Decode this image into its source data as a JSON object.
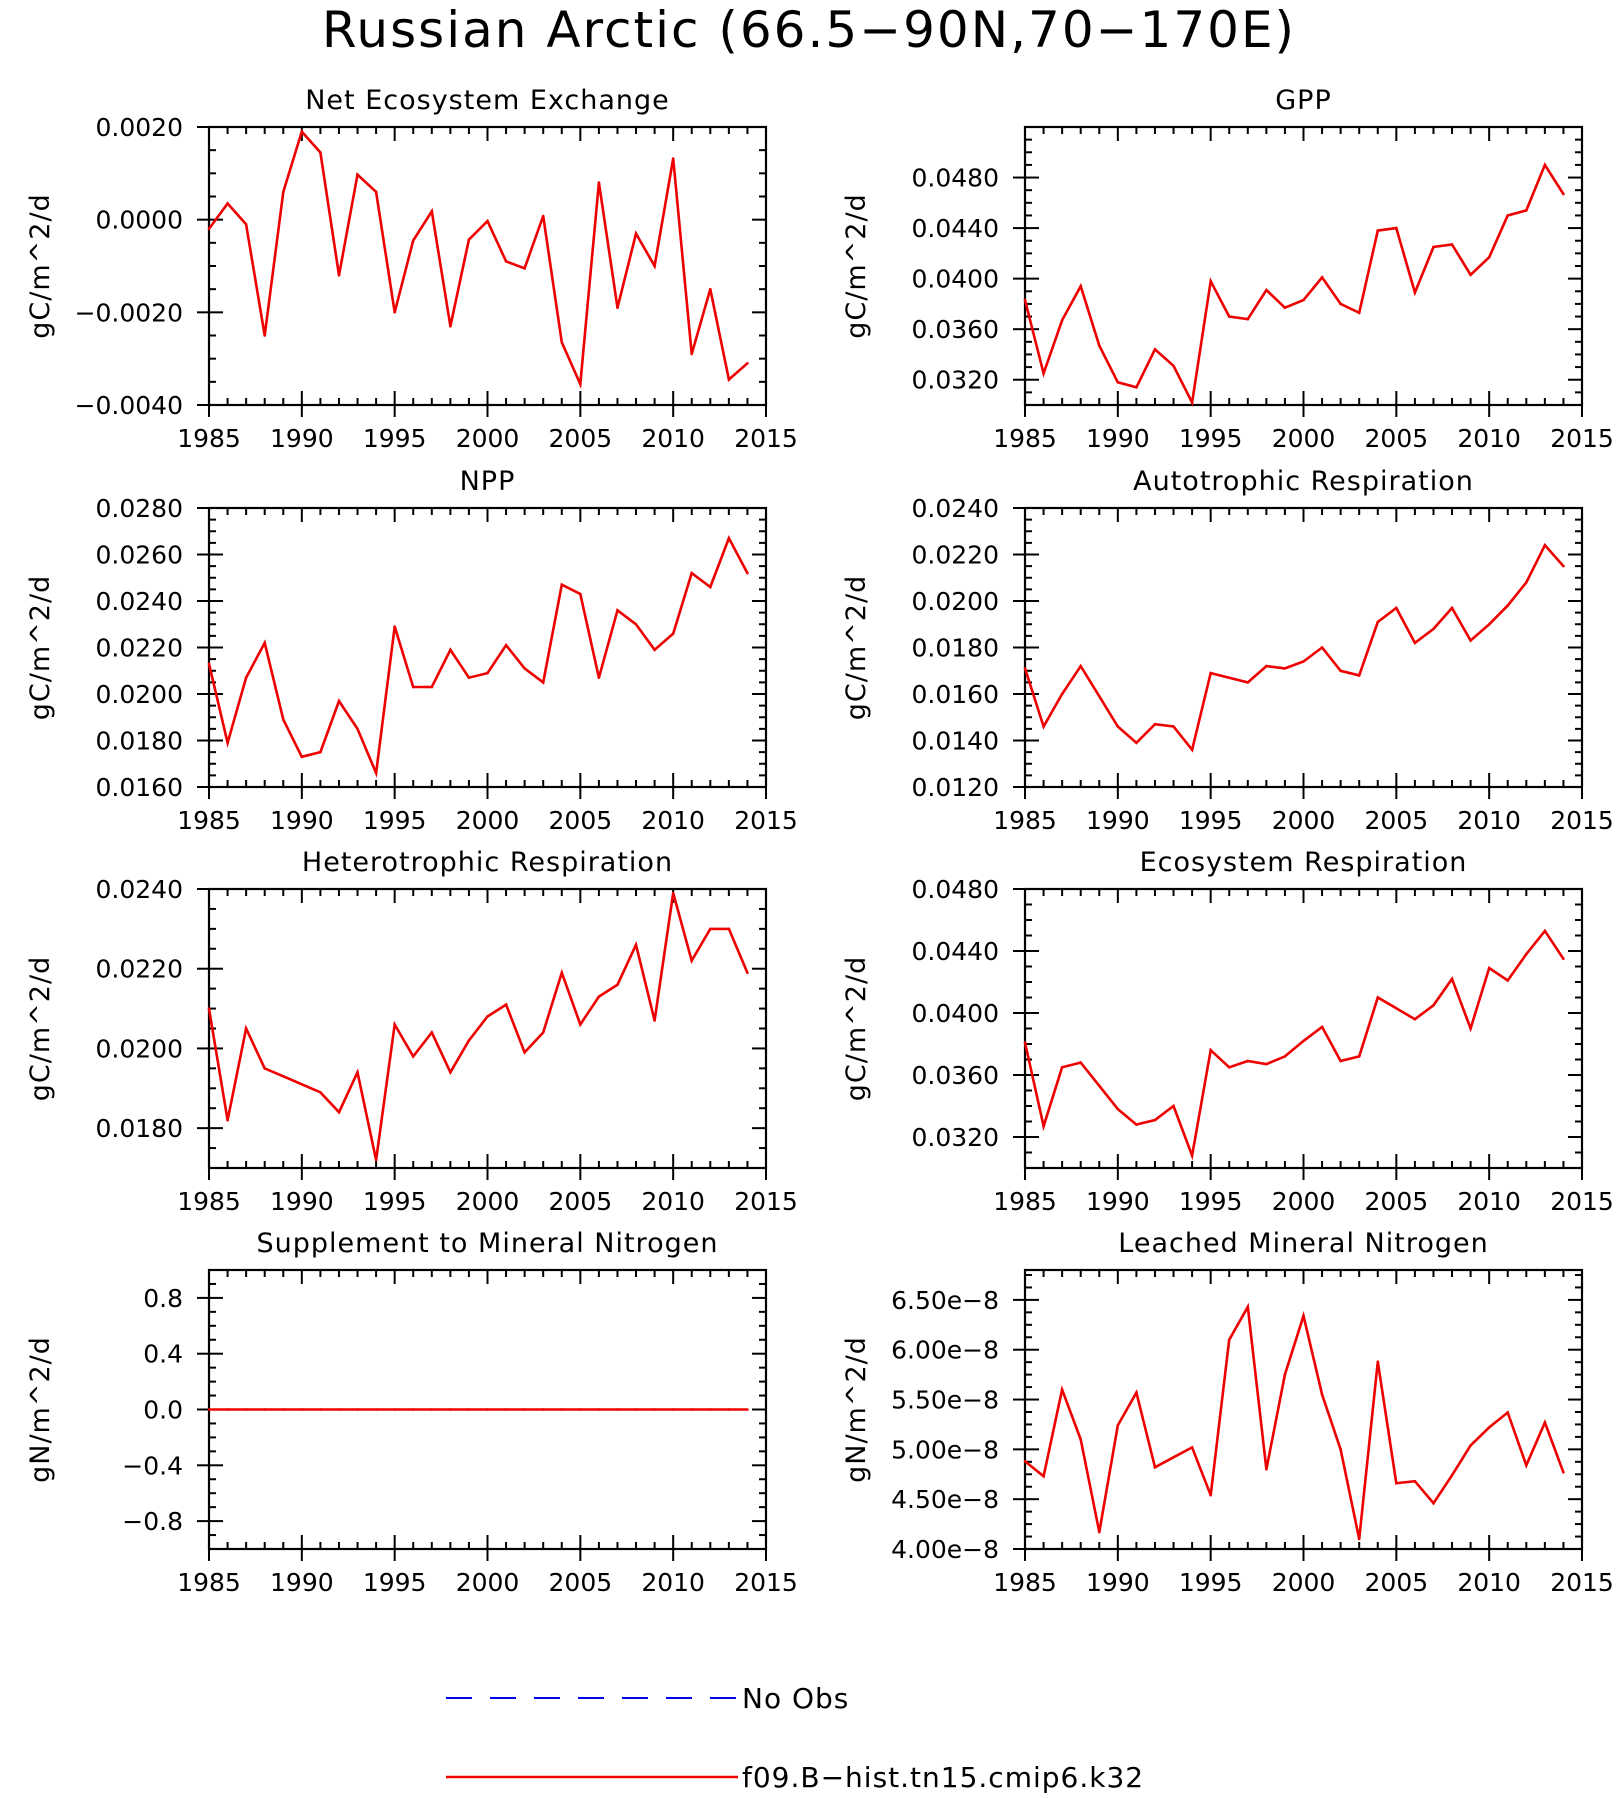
{
  "title": "Russian Arctic (66.5−90N,70−170E)",
  "colors": {
    "model": "#ee0000",
    "obs": "#0000ee"
  },
  "legend": {
    "obs_label": "No Obs",
    "model_label": "f09.B−hist.tn15.cmip6.k32"
  },
  "chart_data": [
    {
      "type": "line",
      "title": "Net Ecosystem Exchange",
      "ylabel": "gC/m^2/d",
      "xlim": [
        1985,
        2015
      ],
      "ylim": [
        -0.004,
        0.002
      ],
      "xticks": [
        "1985",
        "1990",
        "1995",
        "2000",
        "2005",
        "2010",
        "2015"
      ],
      "yticks": [
        {
          "v": 0.002,
          "label": "0.0020"
        },
        {
          "v": 0.0,
          "label": "0.0000"
        },
        {
          "v": -0.002,
          "label": "−0.0020"
        },
        {
          "v": -0.004,
          "label": "−0.0040"
        }
      ],
      "x": [
        1985,
        1986,
        1987,
        1988,
        1989,
        1990,
        1991,
        1992,
        1993,
        1994,
        1995,
        1996,
        1997,
        1998,
        1999,
        2000,
        2001,
        2002,
        2003,
        2004,
        2005,
        2006,
        2007,
        2008,
        2009,
        2010,
        2011,
        2012,
        2013,
        2014
      ],
      "values": [
        -0.0002,
        0.00035,
        -0.0001,
        -0.0025,
        0.0006,
        0.0019,
        0.00145,
        -0.0012,
        0.00097,
        0.0006,
        -0.002,
        -0.00045,
        0.00018,
        -0.0023,
        -0.00043,
        -3e-05,
        -0.0009,
        -0.00105,
        8e-05,
        -0.00265,
        -0.00355,
        0.0008,
        -0.0019,
        -0.0003,
        -0.001,
        0.00132,
        -0.0029,
        -0.0015,
        -0.00345,
        -0.0031
      ]
    },
    {
      "type": "line",
      "title": "GPP",
      "ylabel": "gC/m^2/d",
      "xlim": [
        1985,
        2015
      ],
      "ylim": [
        0.03,
        0.052
      ],
      "xticks": [
        "1985",
        "1990",
        "1995",
        "2000",
        "2005",
        "2010",
        "2015"
      ],
      "yticks": [
        {
          "v": 0.048,
          "label": "0.0480"
        },
        {
          "v": 0.044,
          "label": "0.0440"
        },
        {
          "v": 0.04,
          "label": "0.0400"
        },
        {
          "v": 0.036,
          "label": "0.0360"
        },
        {
          "v": 0.032,
          "label": "0.0320"
        }
      ],
      "x": [
        1985,
        1986,
        1987,
        1988,
        1989,
        1990,
        1991,
        1992,
        1993,
        1994,
        1995,
        1996,
        1997,
        1998,
        1999,
        2000,
        2001,
        2002,
        2003,
        2004,
        2005,
        2006,
        2007,
        2008,
        2009,
        2010,
        2011,
        2012,
        2013,
        2014
      ],
      "values": [
        0.0383,
        0.0325,
        0.0367,
        0.0394,
        0.0347,
        0.0318,
        0.0314,
        0.0344,
        0.0331,
        0.0302,
        0.0398,
        0.037,
        0.0368,
        0.0391,
        0.0377,
        0.0383,
        0.0401,
        0.038,
        0.0373,
        0.0438,
        0.044,
        0.0389,
        0.0425,
        0.0427,
        0.0403,
        0.0417,
        0.045,
        0.0454,
        0.049,
        0.0467
      ]
    },
    {
      "type": "line",
      "title": "NPP",
      "ylabel": "gC/m^2/d",
      "xlim": [
        1985,
        2015
      ],
      "ylim": [
        0.016,
        0.028
      ],
      "xticks": [
        "1985",
        "1990",
        "1995",
        "2000",
        "2005",
        "2010",
        "2015"
      ],
      "yticks": [
        {
          "v": 0.028,
          "label": "0.0280"
        },
        {
          "v": 0.026,
          "label": "0.0260"
        },
        {
          "v": 0.024,
          "label": "0.0240"
        },
        {
          "v": 0.022,
          "label": "0.0220"
        },
        {
          "v": 0.02,
          "label": "0.0200"
        },
        {
          "v": 0.018,
          "label": "0.0180"
        },
        {
          "v": 0.016,
          "label": "0.0160"
        }
      ],
      "x": [
        1985,
        1986,
        1987,
        1988,
        1989,
        1990,
        1991,
        1992,
        1993,
        1994,
        1995,
        1996,
        1997,
        1998,
        1999,
        2000,
        2001,
        2002,
        2003,
        2004,
        2005,
        2006,
        2007,
        2008,
        2009,
        2010,
        2011,
        2012,
        2013,
        2014
      ],
      "values": [
        0.0213,
        0.0179,
        0.0207,
        0.0222,
        0.0189,
        0.0173,
        0.0175,
        0.0197,
        0.0185,
        0.0166,
        0.0229,
        0.0203,
        0.0203,
        0.0219,
        0.0207,
        0.0209,
        0.0221,
        0.0211,
        0.0205,
        0.0247,
        0.0243,
        0.0207,
        0.0236,
        0.023,
        0.0219,
        0.0226,
        0.0252,
        0.0246,
        0.0267,
        0.0252
      ]
    },
    {
      "type": "line",
      "title": "Autotrophic Respiration",
      "ylabel": "gC/m^2/d",
      "xlim": [
        1985,
        2015
      ],
      "ylim": [
        0.012,
        0.024
      ],
      "xticks": [
        "1985",
        "1990",
        "1995",
        "2000",
        "2005",
        "2010",
        "2015"
      ],
      "yticks": [
        {
          "v": 0.024,
          "label": "0.0240"
        },
        {
          "v": 0.022,
          "label": "0.0220"
        },
        {
          "v": 0.02,
          "label": "0.0200"
        },
        {
          "v": 0.018,
          "label": "0.0180"
        },
        {
          "v": 0.016,
          "label": "0.0160"
        },
        {
          "v": 0.014,
          "label": "0.0140"
        },
        {
          "v": 0.012,
          "label": "0.0120"
        }
      ],
      "x": [
        1985,
        1986,
        1987,
        1988,
        1989,
        1990,
        1991,
        1992,
        1993,
        1994,
        1995,
        1996,
        1997,
        1998,
        1999,
        2000,
        2001,
        2002,
        2003,
        2004,
        2005,
        2006,
        2007,
        2008,
        2009,
        2010,
        2011,
        2012,
        2013,
        2014
      ],
      "values": [
        0.0171,
        0.0146,
        0.016,
        0.0172,
        0.0159,
        0.0146,
        0.0139,
        0.0147,
        0.0146,
        0.0136,
        0.0169,
        0.0167,
        0.0165,
        0.0172,
        0.0171,
        0.0174,
        0.018,
        0.017,
        0.0168,
        0.0191,
        0.0197,
        0.0182,
        0.0188,
        0.0197,
        0.0183,
        0.019,
        0.0198,
        0.0208,
        0.0224,
        0.0215
      ]
    },
    {
      "type": "line",
      "title": "Heterotrophic Respiration",
      "ylabel": "gC/m^2/d",
      "xlim": [
        1985,
        2015
      ],
      "ylim": [
        0.017,
        0.024
      ],
      "xticks": [
        "1985",
        "1990",
        "1995",
        "2000",
        "2005",
        "2010",
        "2015"
      ],
      "yticks": [
        {
          "v": 0.024,
          "label": "0.0240"
        },
        {
          "v": 0.022,
          "label": "0.0220"
        },
        {
          "v": 0.02,
          "label": "0.0200"
        },
        {
          "v": 0.018,
          "label": "0.0180"
        }
      ],
      "x": [
        1985,
        1986,
        1987,
        1988,
        1989,
        1990,
        1991,
        1992,
        1993,
        1994,
        1995,
        1996,
        1997,
        1998,
        1999,
        2000,
        2001,
        2002,
        2003,
        2004,
        2005,
        2006,
        2007,
        2008,
        2009,
        2010,
        2011,
        2012,
        2013,
        2014
      ],
      "values": [
        0.021,
        0.0182,
        0.0205,
        0.0195,
        0.0193,
        0.0191,
        0.0189,
        0.0184,
        0.0194,
        0.0172,
        0.0206,
        0.0198,
        0.0204,
        0.0194,
        0.0202,
        0.0208,
        0.0211,
        0.0199,
        0.0204,
        0.0219,
        0.0206,
        0.0213,
        0.0216,
        0.0226,
        0.0207,
        0.0239,
        0.0222,
        0.023,
        0.023,
        0.0219
      ]
    },
    {
      "type": "line",
      "title": "Ecosystem Respiration",
      "ylabel": "gC/m^2/d",
      "xlim": [
        1985,
        2015
      ],
      "ylim": [
        0.03,
        0.048
      ],
      "xticks": [
        "1985",
        "1990",
        "1995",
        "2000",
        "2005",
        "2010",
        "2015"
      ],
      "yticks": [
        {
          "v": 0.048,
          "label": "0.0480"
        },
        {
          "v": 0.044,
          "label": "0.0440"
        },
        {
          "v": 0.04,
          "label": "0.0400"
        },
        {
          "v": 0.036,
          "label": "0.0360"
        },
        {
          "v": 0.032,
          "label": "0.0320"
        }
      ],
      "x": [
        1985,
        1986,
        1987,
        1988,
        1989,
        1990,
        1991,
        1992,
        1993,
        1994,
        1995,
        1996,
        1997,
        1998,
        1999,
        2000,
        2001,
        2002,
        2003,
        2004,
        2005,
        2006,
        2007,
        2008,
        2009,
        2010,
        2011,
        2012,
        2013,
        2014
      ],
      "values": [
        0.0381,
        0.0327,
        0.0365,
        0.0368,
        0.0353,
        0.0338,
        0.0328,
        0.0331,
        0.034,
        0.0308,
        0.0376,
        0.0365,
        0.0369,
        0.0367,
        0.0372,
        0.0382,
        0.0391,
        0.0369,
        0.0372,
        0.041,
        0.0403,
        0.0396,
        0.0405,
        0.0422,
        0.039,
        0.0429,
        0.0421,
        0.0438,
        0.0453,
        0.0435
      ]
    },
    {
      "type": "line",
      "title": "Supplement to Mineral Nitrogen",
      "ylabel": "gN/m^2/d",
      "xlim": [
        1985,
        2015
      ],
      "ylim": [
        -1.0,
        1.0
      ],
      "xticks": [
        "1985",
        "1990",
        "1995",
        "2000",
        "2005",
        "2010",
        "2015"
      ],
      "yticks": [
        {
          "v": 0.8,
          "label": "0.8"
        },
        {
          "v": 0.4,
          "label": "0.4"
        },
        {
          "v": 0.0,
          "label": "0.0"
        },
        {
          "v": -0.4,
          "label": "−0.4"
        },
        {
          "v": -0.8,
          "label": "−0.8"
        }
      ],
      "x": [
        1985,
        1986,
        1987,
        1988,
        1989,
        1990,
        1991,
        1992,
        1993,
        1994,
        1995,
        1996,
        1997,
        1998,
        1999,
        2000,
        2001,
        2002,
        2003,
        2004,
        2005,
        2006,
        2007,
        2008,
        2009,
        2010,
        2011,
        2012,
        2013,
        2014
      ],
      "values": [
        0,
        0,
        0,
        0,
        0,
        0,
        0,
        0,
        0,
        0,
        0,
        0,
        0,
        0,
        0,
        0,
        0,
        0,
        0,
        0,
        0,
        0,
        0,
        0,
        0,
        0,
        0,
        0,
        0,
        0
      ]
    },
    {
      "type": "line",
      "title": "Leached Mineral Nitrogen",
      "ylabel": "gN/m^2/d",
      "xlim": [
        1985,
        2015
      ],
      "ylim": [
        4e-08,
        6.8e-08
      ],
      "xticks": [
        "1985",
        "1990",
        "1995",
        "2000",
        "2005",
        "2010",
        "2015"
      ],
      "yticks": [
        {
          "v": 6.5e-08,
          "label": "6.50e−8"
        },
        {
          "v": 6e-08,
          "label": "6.00e−8"
        },
        {
          "v": 5.5e-08,
          "label": "5.50e−8"
        },
        {
          "v": 5e-08,
          "label": "5.00e−8"
        },
        {
          "v": 4.5e-08,
          "label": "4.50e−8"
        },
        {
          "v": 4e-08,
          "label": "4.00e−8"
        }
      ],
      "x": [
        1985,
        1986,
        1987,
        1988,
        1989,
        1990,
        1991,
        1992,
        1993,
        1994,
        1995,
        1996,
        1997,
        1998,
        1999,
        2000,
        2001,
        2002,
        2003,
        2004,
        2005,
        2006,
        2007,
        2008,
        2009,
        2010,
        2011,
        2012,
        2013,
        2014
      ],
      "values": [
        4.88e-08,
        4.73e-08,
        5.6e-08,
        5.1e-08,
        4.17e-08,
        5.24e-08,
        5.57e-08,
        4.82e-08,
        4.92e-08,
        5.02e-08,
        4.54e-08,
        6.1e-08,
        6.43e-08,
        4.8e-08,
        5.75e-08,
        6.34e-08,
        5.55e-08,
        5e-08,
        4.1e-08,
        5.88e-08,
        4.66e-08,
        4.68e-08,
        4.46e-08,
        4.74e-08,
        5.04e-08,
        5.22e-08,
        5.37e-08,
        4.84e-08,
        5.27e-08,
        4.77e-08
      ]
    }
  ]
}
